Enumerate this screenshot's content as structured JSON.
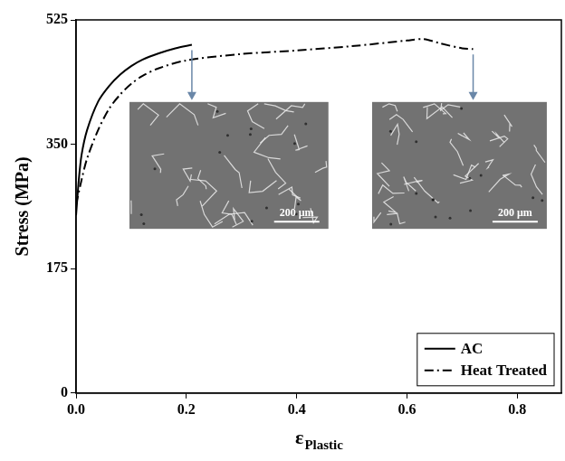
{
  "chart_data": {
    "type": "line",
    "y_label": "Stress (MPa)",
    "x_label": "ε",
    "x_label_subscript": "Plastic",
    "xlim": [
      0,
      0.88
    ],
    "xticks": [
      {
        "value": 0,
        "label": "0.0"
      },
      {
        "value": 0.2,
        "label": "0.2"
      },
      {
        "value": 0.4,
        "label": "0.4"
      },
      {
        "value": 0.6,
        "label": "0.6"
      },
      {
        "value": 0.8,
        "label": "0.8"
      }
    ],
    "ylim": [
      0,
      525
    ],
    "yticks": [
      0,
      175,
      350,
      525
    ],
    "grid": false,
    "legend": "lower right",
    "series": [
      {
        "name": "AC",
        "color": "#000000",
        "line_style": "solid",
        "x": [
          0,
          0.005,
          0.01,
          0.02,
          0.04,
          0.06,
          0.08,
          0.1,
          0.12,
          0.15,
          0.18,
          0.21
        ],
        "values": [
          250,
          300,
          335,
          370,
          410,
          432,
          448,
          460,
          469,
          478,
          485,
          490
        ]
      },
      {
        "name": "Heat Treated",
        "color": "#000000",
        "line_style": "dashdot",
        "x": [
          0,
          0.01,
          0.02,
          0.04,
          0.06,
          0.08,
          0.1,
          0.12,
          0.15,
          0.2,
          0.3,
          0.4,
          0.5,
          0.6,
          0.63,
          0.66,
          0.7,
          0.72
        ],
        "values": [
          265,
          300,
          330,
          370,
          400,
          420,
          435,
          446,
          457,
          468,
          477,
          482,
          488,
          496,
          498,
          492,
          485,
          484
        ]
      }
    ],
    "insets": [
      {
        "x": 0.21,
        "scale_bar": "200 μm"
      },
      {
        "x": 0.72,
        "scale_bar": "200 μm"
      }
    ]
  }
}
